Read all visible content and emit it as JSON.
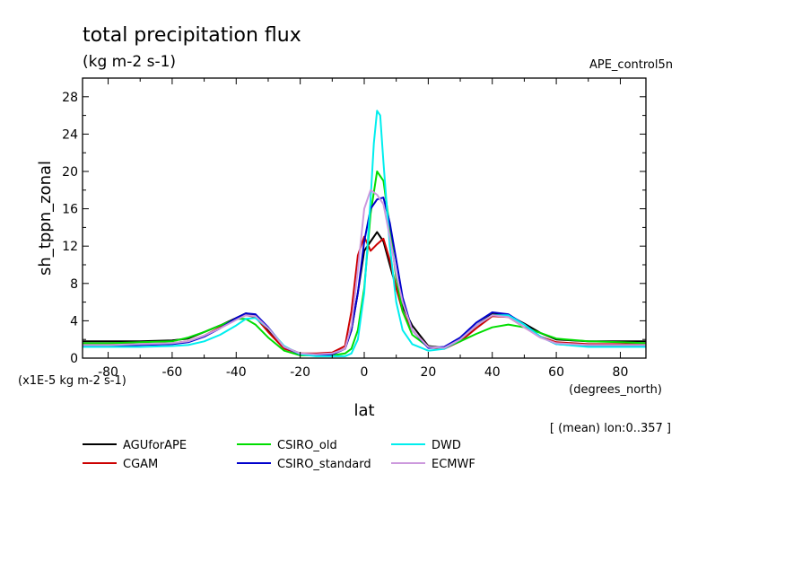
{
  "chart_data": {
    "type": "line",
    "title": "total precipitation flux",
    "subtitle": "(kg m-2 s-1)",
    "dataset_label": "APE_control5n",
    "xlabel": "lat",
    "x_units": "(degrees_north)",
    "ylabel": "sh_tppn_zonal",
    "y_scale_note": "(x1E-5 kg m-2 s-1)",
    "annotation": "[ (mean) lon:0..357 ]",
    "xlim": [
      -88,
      88
    ],
    "ylim": [
      0,
      30
    ],
    "x_ticks": [
      -80,
      -60,
      -40,
      -20,
      0,
      20,
      40,
      60,
      80
    ],
    "y_ticks": [
      0,
      4,
      8,
      12,
      16,
      20,
      24,
      28
    ],
    "grid": false,
    "legend_position": "bottom",
    "series": [
      {
        "name": "AGUforAPE",
        "color": "#000000",
        "x": [
          -88,
          -80,
          -70,
          -60,
          -55,
          -50,
          -45,
          -40,
          -37,
          -34,
          -30,
          -25,
          -20,
          -15,
          -10,
          -6,
          -4,
          -2,
          0,
          2,
          4,
          6,
          8,
          10,
          12,
          15,
          20,
          25,
          30,
          35,
          40,
          45,
          50,
          55,
          60,
          70,
          80,
          88
        ],
        "y": [
          1.8,
          1.8,
          1.8,
          1.9,
          2.1,
          2.8,
          3.5,
          4.3,
          4.8,
          4.6,
          3.0,
          1.2,
          0.5,
          0.4,
          0.5,
          1.0,
          3.0,
          7.0,
          11.5,
          12.5,
          13.5,
          12.5,
          10.0,
          7.5,
          5.5,
          3.5,
          1.3,
          1.1,
          2.0,
          3.5,
          4.7,
          4.6,
          3.7,
          2.7,
          2.0,
          1.8,
          1.8,
          1.8
        ]
      },
      {
        "name": "CGAM",
        "color": "#cc0000",
        "x": [
          -88,
          -80,
          -70,
          -60,
          -55,
          -50,
          -45,
          -40,
          -37,
          -34,
          -30,
          -25,
          -20,
          -15,
          -10,
          -6,
          -4,
          -2,
          0,
          2,
          4,
          6,
          8,
          10,
          12,
          15,
          20,
          25,
          30,
          35,
          40,
          45,
          50,
          55,
          60,
          70,
          80,
          88
        ],
        "y": [
          1.5,
          1.5,
          1.5,
          1.6,
          1.8,
          2.4,
          3.3,
          4.2,
          4.6,
          4.4,
          2.8,
          1.0,
          0.5,
          0.5,
          0.6,
          1.3,
          5.0,
          11.0,
          13.0,
          11.5,
          12.2,
          12.8,
          10.5,
          7.5,
          5.0,
          3.0,
          1.2,
          1.0,
          1.8,
          3.2,
          4.5,
          4.4,
          3.3,
          2.3,
          1.7,
          1.5,
          1.5,
          1.5
        ]
      },
      {
        "name": "CSIRO_old",
        "color": "#00dd00",
        "x": [
          -88,
          -80,
          -70,
          -60,
          -55,
          -50,
          -45,
          -40,
          -37,
          -34,
          -30,
          -25,
          -20,
          -15,
          -10,
          -6,
          -4,
          -2,
          0,
          2,
          4,
          6,
          8,
          10,
          12,
          15,
          20,
          25,
          30,
          35,
          40,
          45,
          50,
          55,
          60,
          70,
          80,
          88
        ],
        "y": [
          1.6,
          1.6,
          1.7,
          1.8,
          2.2,
          2.8,
          3.5,
          4.2,
          4.2,
          3.6,
          2.2,
          0.8,
          0.3,
          0.3,
          0.3,
          0.5,
          1.0,
          3.0,
          7.5,
          15.5,
          20.0,
          19.0,
          14.0,
          8.5,
          5.0,
          2.5,
          1.2,
          1.1,
          1.8,
          2.6,
          3.3,
          3.6,
          3.3,
          2.7,
          2.1,
          1.8,
          1.7,
          1.6
        ]
      },
      {
        "name": "CSIRO_standard",
        "color": "#0000cc",
        "x": [
          -88,
          -80,
          -70,
          -60,
          -55,
          -50,
          -45,
          -40,
          -37,
          -34,
          -30,
          -25,
          -20,
          -15,
          -10,
          -6,
          -4,
          -2,
          0,
          2,
          4,
          6,
          8,
          10,
          12,
          15,
          20,
          25,
          30,
          35,
          40,
          45,
          50,
          55,
          60,
          70,
          80,
          88
        ],
        "y": [
          1.3,
          1.3,
          1.4,
          1.5,
          1.7,
          2.3,
          3.2,
          4.3,
          4.8,
          4.7,
          3.3,
          1.2,
          0.4,
          0.3,
          0.4,
          1.0,
          3.0,
          7.0,
          12.5,
          16.0,
          17.0,
          17.2,
          14.5,
          10.5,
          6.5,
          3.0,
          1.1,
          1.2,
          2.2,
          3.8,
          4.9,
          4.7,
          3.6,
          2.3,
          1.5,
          1.3,
          1.3,
          1.3
        ]
      },
      {
        "name": "DWD",
        "color": "#00eeee",
        "x": [
          -88,
          -80,
          -70,
          -60,
          -55,
          -50,
          -45,
          -40,
          -37,
          -34,
          -30,
          -25,
          -20,
          -15,
          -10,
          -6,
          -4,
          -2,
          0,
          2,
          3,
          4,
          5,
          6,
          8,
          10,
          12,
          15,
          20,
          25,
          30,
          35,
          40,
          45,
          50,
          55,
          60,
          70,
          80,
          88
        ],
        "y": [
          1.2,
          1.2,
          1.2,
          1.3,
          1.4,
          1.8,
          2.5,
          3.5,
          4.2,
          4.3,
          3.2,
          1.3,
          0.4,
          0.2,
          0.2,
          0.2,
          0.5,
          2.0,
          7.0,
          17.0,
          23.0,
          26.5,
          26.0,
          21.0,
          12.0,
          6.0,
          3.0,
          1.5,
          0.8,
          1.0,
          2.0,
          3.5,
          4.6,
          4.6,
          3.6,
          2.3,
          1.5,
          1.2,
          1.2,
          1.2
        ]
      },
      {
        "name": "ECMWF",
        "color": "#cc99dd",
        "x": [
          -88,
          -80,
          -70,
          -60,
          -55,
          -50,
          -45,
          -40,
          -37,
          -34,
          -30,
          -25,
          -20,
          -15,
          -10,
          -6,
          -4,
          -2,
          0,
          2,
          4,
          6,
          8,
          10,
          12,
          15,
          20,
          25,
          30,
          35,
          40,
          45,
          50,
          55,
          60,
          70,
          80,
          88
        ],
        "y": [
          1.4,
          1.4,
          1.5,
          1.6,
          1.8,
          2.4,
          3.2,
          4.1,
          4.6,
          4.5,
          3.2,
          1.2,
          0.5,
          0.4,
          0.5,
          1.0,
          3.5,
          9.5,
          16.0,
          18.0,
          17.5,
          16.5,
          13.0,
          9.0,
          6.0,
          3.0,
          1.2,
          1.1,
          2.0,
          3.5,
          4.6,
          4.4,
          3.3,
          2.2,
          1.6,
          1.4,
          1.4,
          1.4
        ]
      }
    ]
  }
}
